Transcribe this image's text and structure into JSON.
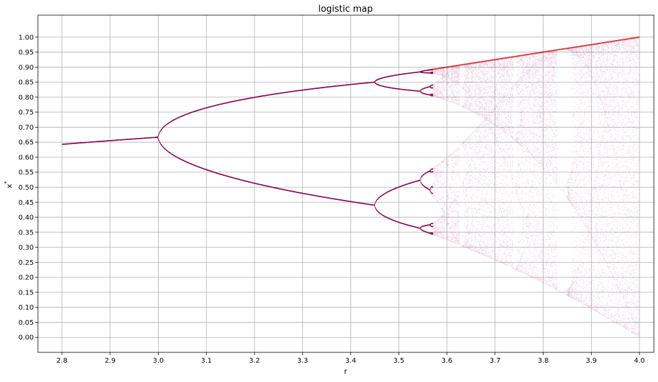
{
  "chart_data": {
    "type": "scatter",
    "title": "logistic map",
    "xlabel": "r",
    "ylabel": "x*",
    "xlim": [
      2.75,
      4.03
    ],
    "ylim": [
      -0.05,
      1.073
    ],
    "x_ticks": [
      "2.8",
      "2.9",
      "3.0",
      "3.1",
      "3.2",
      "3.3",
      "3.4",
      "3.5",
      "3.6",
      "3.7",
      "3.8",
      "3.9",
      "4.0"
    ],
    "y_ticks": [
      "0.00",
      "0.05",
      "0.10",
      "0.15",
      "0.20",
      "0.25",
      "0.30",
      "0.35",
      "0.40",
      "0.45",
      "0.50",
      "0.55",
      "0.60",
      "0.65",
      "0.70",
      "0.75",
      "0.80",
      "0.85",
      "0.90",
      "0.95",
      "1.00"
    ],
    "grid": true,
    "legend": "none",
    "r_range": [
      2.8,
      4.0
    ],
    "series_colors": [
      "#cc0000",
      "#0000cc",
      "#8b0a6a"
    ]
  }
}
